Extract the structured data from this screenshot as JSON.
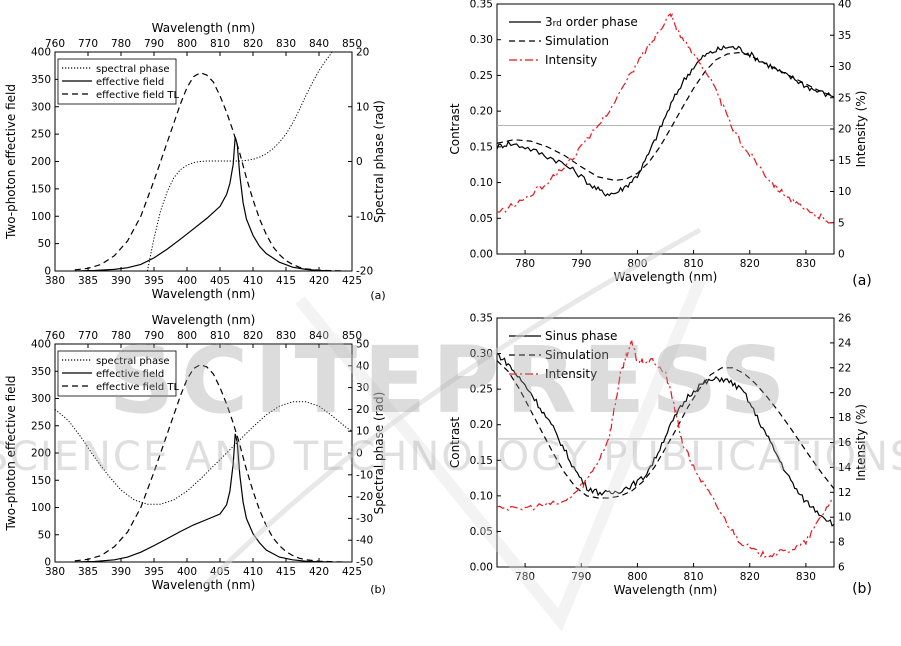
{
  "watermark": {
    "line1": "SCITEPRESS",
    "line2": "SCIENCE AND TECHNOLOGY PUBLICATIONS"
  },
  "chart_data": [
    {
      "id": "top-left",
      "type": "line",
      "panel_label": "(a)",
      "xlabel": "Wavelength (nm)",
      "xlim": [
        380,
        425
      ],
      "xticks": [
        380,
        385,
        390,
        395,
        400,
        405,
        410,
        415,
        420,
        425
      ],
      "top_xlabel": "Wavelength (nm)",
      "top_xlim": [
        760,
        850
      ],
      "top_xticks": [
        760,
        770,
        780,
        790,
        800,
        810,
        820,
        830,
        840,
        850
      ],
      "ylabel": "Two-photon effective field",
      "ylim": [
        0,
        400
      ],
      "yticks": [
        0,
        50,
        100,
        150,
        200,
        250,
        300,
        350,
        400
      ],
      "y2label": "Spectral phase (rad)",
      "y2lim": [
        -20,
        20
      ],
      "y2ticks": [
        -20,
        -10,
        0,
        10,
        20
      ],
      "legend_position": "top-left",
      "series": [
        {
          "name": "spectral phase",
          "axis": "y2",
          "style": "dotted",
          "x": [
            394,
            395,
            396,
            397,
            398,
            399,
            400,
            401,
            402,
            403,
            404,
            405,
            406,
            407,
            408,
            409,
            410,
            411,
            412,
            413,
            414,
            415,
            416,
            417,
            418,
            419,
            420,
            421,
            422
          ],
          "y": [
            -20,
            -14,
            -9,
            -5.5,
            -3,
            -1.5,
            -0.7,
            -0.2,
            0,
            0.1,
            0.1,
            0.1,
            0.1,
            0.1,
            0.1,
            0.2,
            0.4,
            0.8,
            1.4,
            2.3,
            3.5,
            5,
            7,
            9.4,
            12,
            14.4,
            16.6,
            18.4,
            20
          ]
        },
        {
          "name": "effective field",
          "axis": "y",
          "style": "solid",
          "x": [
            383,
            386,
            389,
            391,
            393,
            395,
            397,
            399,
            401,
            403,
            405,
            406,
            406.5,
            407,
            407.3,
            407.6,
            408,
            408.5,
            409,
            410,
            411,
            412,
            414,
            416,
            418,
            420,
            422
          ],
          "y": [
            0,
            1,
            3,
            6,
            12,
            24,
            40,
            58,
            77,
            96,
            118,
            140,
            160,
            195,
            245,
            232,
            175,
            125,
            95,
            65,
            45,
            32,
            16,
            7,
            3,
            1,
            0
          ]
        },
        {
          "name": "effective field TL",
          "axis": "y",
          "style": "dashed",
          "x": [
            383,
            385,
            387,
            389,
            391,
            393,
            395,
            397,
            398,
            399,
            400,
            401,
            402,
            403,
            404,
            405,
            406,
            407,
            408,
            409,
            410,
            411,
            412,
            413,
            414,
            415,
            416,
            417,
            418,
            420,
            422,
            424
          ],
          "y": [
            2,
            5,
            12,
            28,
            55,
            100,
            165,
            235,
            270,
            305,
            335,
            355,
            362,
            358,
            345,
            320,
            290,
            255,
            215,
            170,
            130,
            95,
            67,
            45,
            30,
            19,
            12,
            7,
            4,
            1.5,
            0.5,
            0
          ]
        }
      ]
    },
    {
      "id": "top-right",
      "type": "line",
      "panel_label": "(a)",
      "xlabel": "Wavelength (nm)",
      "xlim": [
        775,
        835
      ],
      "xticks": [
        780,
        790,
        800,
        810,
        820,
        830
      ],
      "ylabel": "Contrast",
      "ylim": [
        0,
        0.35
      ],
      "yticks": [
        0.0,
        0.05,
        0.1,
        0.15,
        0.2,
        0.25,
        0.3,
        0.35
      ],
      "y2label": "Intensity (%)",
      "y2lim": [
        0,
        40
      ],
      "y2ticks": [
        0,
        5,
        10,
        15,
        20,
        25,
        30,
        35,
        40
      ],
      "hline": 0.18,
      "legend_position": "top-left",
      "series": [
        {
          "name": "3rd order phase",
          "name_parts": [
            "3",
            "rd",
            " order phase"
          ],
          "axis": "y",
          "style": "solid",
          "noisy": true,
          "x": [
            775,
            777,
            780,
            783,
            786,
            789,
            792,
            794,
            796,
            798,
            800,
            802,
            804,
            806,
            808,
            810,
            812,
            814,
            816,
            818,
            820,
            822,
            824,
            826,
            828,
            830,
            832,
            835
          ],
          "y": [
            0.15,
            0.155,
            0.15,
            0.14,
            0.13,
            0.115,
            0.095,
            0.085,
            0.085,
            0.095,
            0.11,
            0.14,
            0.175,
            0.21,
            0.24,
            0.262,
            0.278,
            0.285,
            0.29,
            0.288,
            0.28,
            0.27,
            0.262,
            0.252,
            0.245,
            0.235,
            0.228,
            0.22
          ]
        },
        {
          "name": "Simulation",
          "axis": "y",
          "style": "dashed",
          "x": [
            775,
            778,
            781,
            784,
            787,
            790,
            793,
            796,
            798,
            800,
            802,
            804,
            806,
            808,
            810,
            812,
            814,
            816,
            818,
            820,
            822,
            824,
            826,
            828,
            830,
            832,
            835
          ],
          "y": [
            0.155,
            0.16,
            0.158,
            0.15,
            0.138,
            0.122,
            0.108,
            0.103,
            0.105,
            0.113,
            0.128,
            0.15,
            0.177,
            0.205,
            0.232,
            0.255,
            0.272,
            0.28,
            0.282,
            0.278,
            0.27,
            0.262,
            0.254,
            0.246,
            0.238,
            0.23,
            0.22
          ]
        },
        {
          "name": "Intensity",
          "axis": "y2",
          "style": "dashdot",
          "color": "#e8141c",
          "noisy": true,
          "x": [
            775,
            778,
            781,
            784,
            787,
            790,
            793,
            796,
            799,
            801,
            803,
            805,
            806,
            807,
            809,
            811,
            813,
            815,
            817,
            819,
            821,
            823,
            825,
            827,
            829,
            831,
            833,
            835
          ],
          "y": [
            6.5,
            7.8,
            9.5,
            11.5,
            14,
            17,
            20.5,
            24.5,
            29,
            32,
            34.5,
            37.5,
            38.5,
            36,
            33,
            31,
            28,
            24,
            20,
            17,
            15,
            12.5,
            10.5,
            9,
            7.5,
            6.5,
            5.8,
            5
          ]
        }
      ]
    },
    {
      "id": "bottom-left",
      "type": "line",
      "panel_label": "(b)",
      "xlabel": "Wavelength (nm)",
      "xlim": [
        380,
        425
      ],
      "xticks": [
        380,
        385,
        390,
        395,
        400,
        405,
        410,
        415,
        420,
        425
      ],
      "top_xlabel": "Wavelength (nm)",
      "top_xlim": [
        760,
        850
      ],
      "top_xticks": [
        760,
        770,
        780,
        790,
        800,
        810,
        820,
        830,
        840,
        850
      ],
      "ylabel": "Two-photon effective field",
      "ylim": [
        0,
        400
      ],
      "yticks": [
        0,
        50,
        100,
        150,
        200,
        250,
        300,
        350,
        400
      ],
      "y2label": "Spectral phase (rad)",
      "y2lim": [
        -50,
        50
      ],
      "y2ticks": [
        -50,
        -40,
        -30,
        -20,
        -10,
        0,
        10,
        20,
        30,
        40,
        50
      ],
      "legend_position": "top-left",
      "series": [
        {
          "name": "spectral phase",
          "axis": "y2",
          "style": "dotted",
          "x": [
            380,
            382,
            384,
            386,
            388,
            390,
            392,
            394,
            396,
            398,
            400,
            402,
            404,
            406,
            408,
            410,
            412,
            414,
            416,
            418,
            420,
            422,
            424,
            425
          ],
          "y": [
            20,
            15,
            7,
            -2,
            -10,
            -17,
            -21.5,
            -23.5,
            -23.5,
            -21.5,
            -17.5,
            -12,
            -6,
            0,
            6,
            12,
            17.5,
            21.5,
            23.5,
            23.5,
            21.5,
            17,
            12,
            10
          ]
        },
        {
          "name": "effective field",
          "axis": "y",
          "style": "solid",
          "x": [
            383,
            386,
            389,
            391,
            393,
            395,
            397,
            399,
            401,
            403,
            405,
            406,
            406.5,
            407,
            407.3,
            407.6,
            408,
            408.5,
            409,
            410,
            411,
            412,
            414,
            416,
            418,
            420,
            422
          ],
          "y": [
            0,
            1,
            4,
            9,
            18,
            30,
            43,
            56,
            68,
            78,
            88,
            105,
            130,
            180,
            235,
            220,
            160,
            110,
            80,
            52,
            35,
            22,
            9,
            4,
            1.5,
            0.5,
            0
          ]
        },
        {
          "name": "effective field TL",
          "axis": "y",
          "style": "dashed",
          "x": [
            383,
            385,
            387,
            389,
            391,
            393,
            395,
            397,
            398,
            399,
            400,
            401,
            402,
            403,
            404,
            405,
            406,
            407,
            408,
            409,
            410,
            411,
            412,
            413,
            414,
            415,
            416,
            417,
            418,
            420,
            422,
            424
          ],
          "y": [
            2,
            5,
            12,
            28,
            55,
            100,
            165,
            235,
            270,
            305,
            335,
            355,
            362,
            358,
            345,
            320,
            290,
            255,
            215,
            170,
            130,
            95,
            67,
            45,
            30,
            19,
            12,
            7,
            4,
            1.5,
            0.5,
            0
          ]
        }
      ]
    },
    {
      "id": "bottom-right",
      "type": "line",
      "panel_label": "(b)",
      "xlabel": "Wavelength (nm)",
      "xlim": [
        775,
        835
      ],
      "xticks": [
        780,
        790,
        800,
        810,
        820,
        830
      ],
      "ylabel": "Contrast",
      "ylim": [
        0,
        0.35
      ],
      "yticks": [
        0.0,
        0.05,
        0.1,
        0.15,
        0.2,
        0.25,
        0.3,
        0.35
      ],
      "y2label": "Intensity (%)",
      "y2lim": [
        6,
        26
      ],
      "y2ticks": [
        6,
        8,
        10,
        12,
        14,
        16,
        18,
        20,
        22,
        24,
        26
      ],
      "hline": 0.18,
      "legend_position": "top-left",
      "series": [
        {
          "name": "Sinus phase",
          "axis": "y",
          "style": "solid",
          "noisy": true,
          "x": [
            775,
            777,
            779,
            781,
            783,
            785,
            787,
            789,
            791,
            793,
            795,
            797,
            799,
            801,
            803,
            805,
            807,
            809,
            811,
            813,
            815,
            817,
            819,
            821,
            823,
            825,
            827,
            829,
            831,
            833,
            835
          ],
          "y": [
            0.3,
            0.285,
            0.265,
            0.245,
            0.22,
            0.195,
            0.165,
            0.135,
            0.112,
            0.105,
            0.103,
            0.108,
            0.115,
            0.125,
            0.15,
            0.185,
            0.215,
            0.24,
            0.255,
            0.262,
            0.265,
            0.258,
            0.245,
            0.215,
            0.185,
            0.155,
            0.125,
            0.1,
            0.085,
            0.072,
            0.06
          ]
        },
        {
          "name": "Simulation",
          "axis": "y",
          "style": "dashed",
          "x": [
            775,
            777,
            779,
            781,
            783,
            785,
            787,
            789,
            791,
            793,
            795,
            797,
            799,
            801,
            803,
            805,
            807,
            809,
            811,
            813,
            815,
            817,
            819,
            821,
            823,
            825,
            827,
            829,
            831,
            833,
            835
          ],
          "y": [
            0.29,
            0.275,
            0.25,
            0.22,
            0.19,
            0.16,
            0.133,
            0.112,
            0.1,
            0.097,
            0.097,
            0.1,
            0.107,
            0.12,
            0.14,
            0.167,
            0.195,
            0.225,
            0.25,
            0.27,
            0.28,
            0.28,
            0.272,
            0.258,
            0.24,
            0.22,
            0.198,
            0.175,
            0.152,
            0.13,
            0.11
          ]
        },
        {
          "name": "Intensity",
          "axis": "y2",
          "style": "dashdot",
          "color": "#e8141c",
          "noisy": true,
          "x": [
            775,
            778,
            781,
            784,
            787,
            789,
            791,
            793,
            795,
            796,
            797,
            798,
            799,
            800,
            801,
            803,
            805,
            806,
            807,
            808,
            810,
            812,
            814,
            816,
            818,
            820,
            822,
            824,
            826,
            828,
            830,
            832,
            834,
            835
          ],
          "y": [
            11,
            10.6,
            10.8,
            11,
            11.2,
            12,
            13,
            14.5,
            16.5,
            19,
            21.5,
            23,
            24,
            22.5,
            22.5,
            22.5,
            21.5,
            20,
            18,
            16,
            14,
            12.5,
            11,
            9.5,
            8.2,
            7.5,
            7,
            7,
            7.2,
            7.5,
            8,
            9.5,
            11,
            11.5
          ]
        }
      ]
    }
  ]
}
